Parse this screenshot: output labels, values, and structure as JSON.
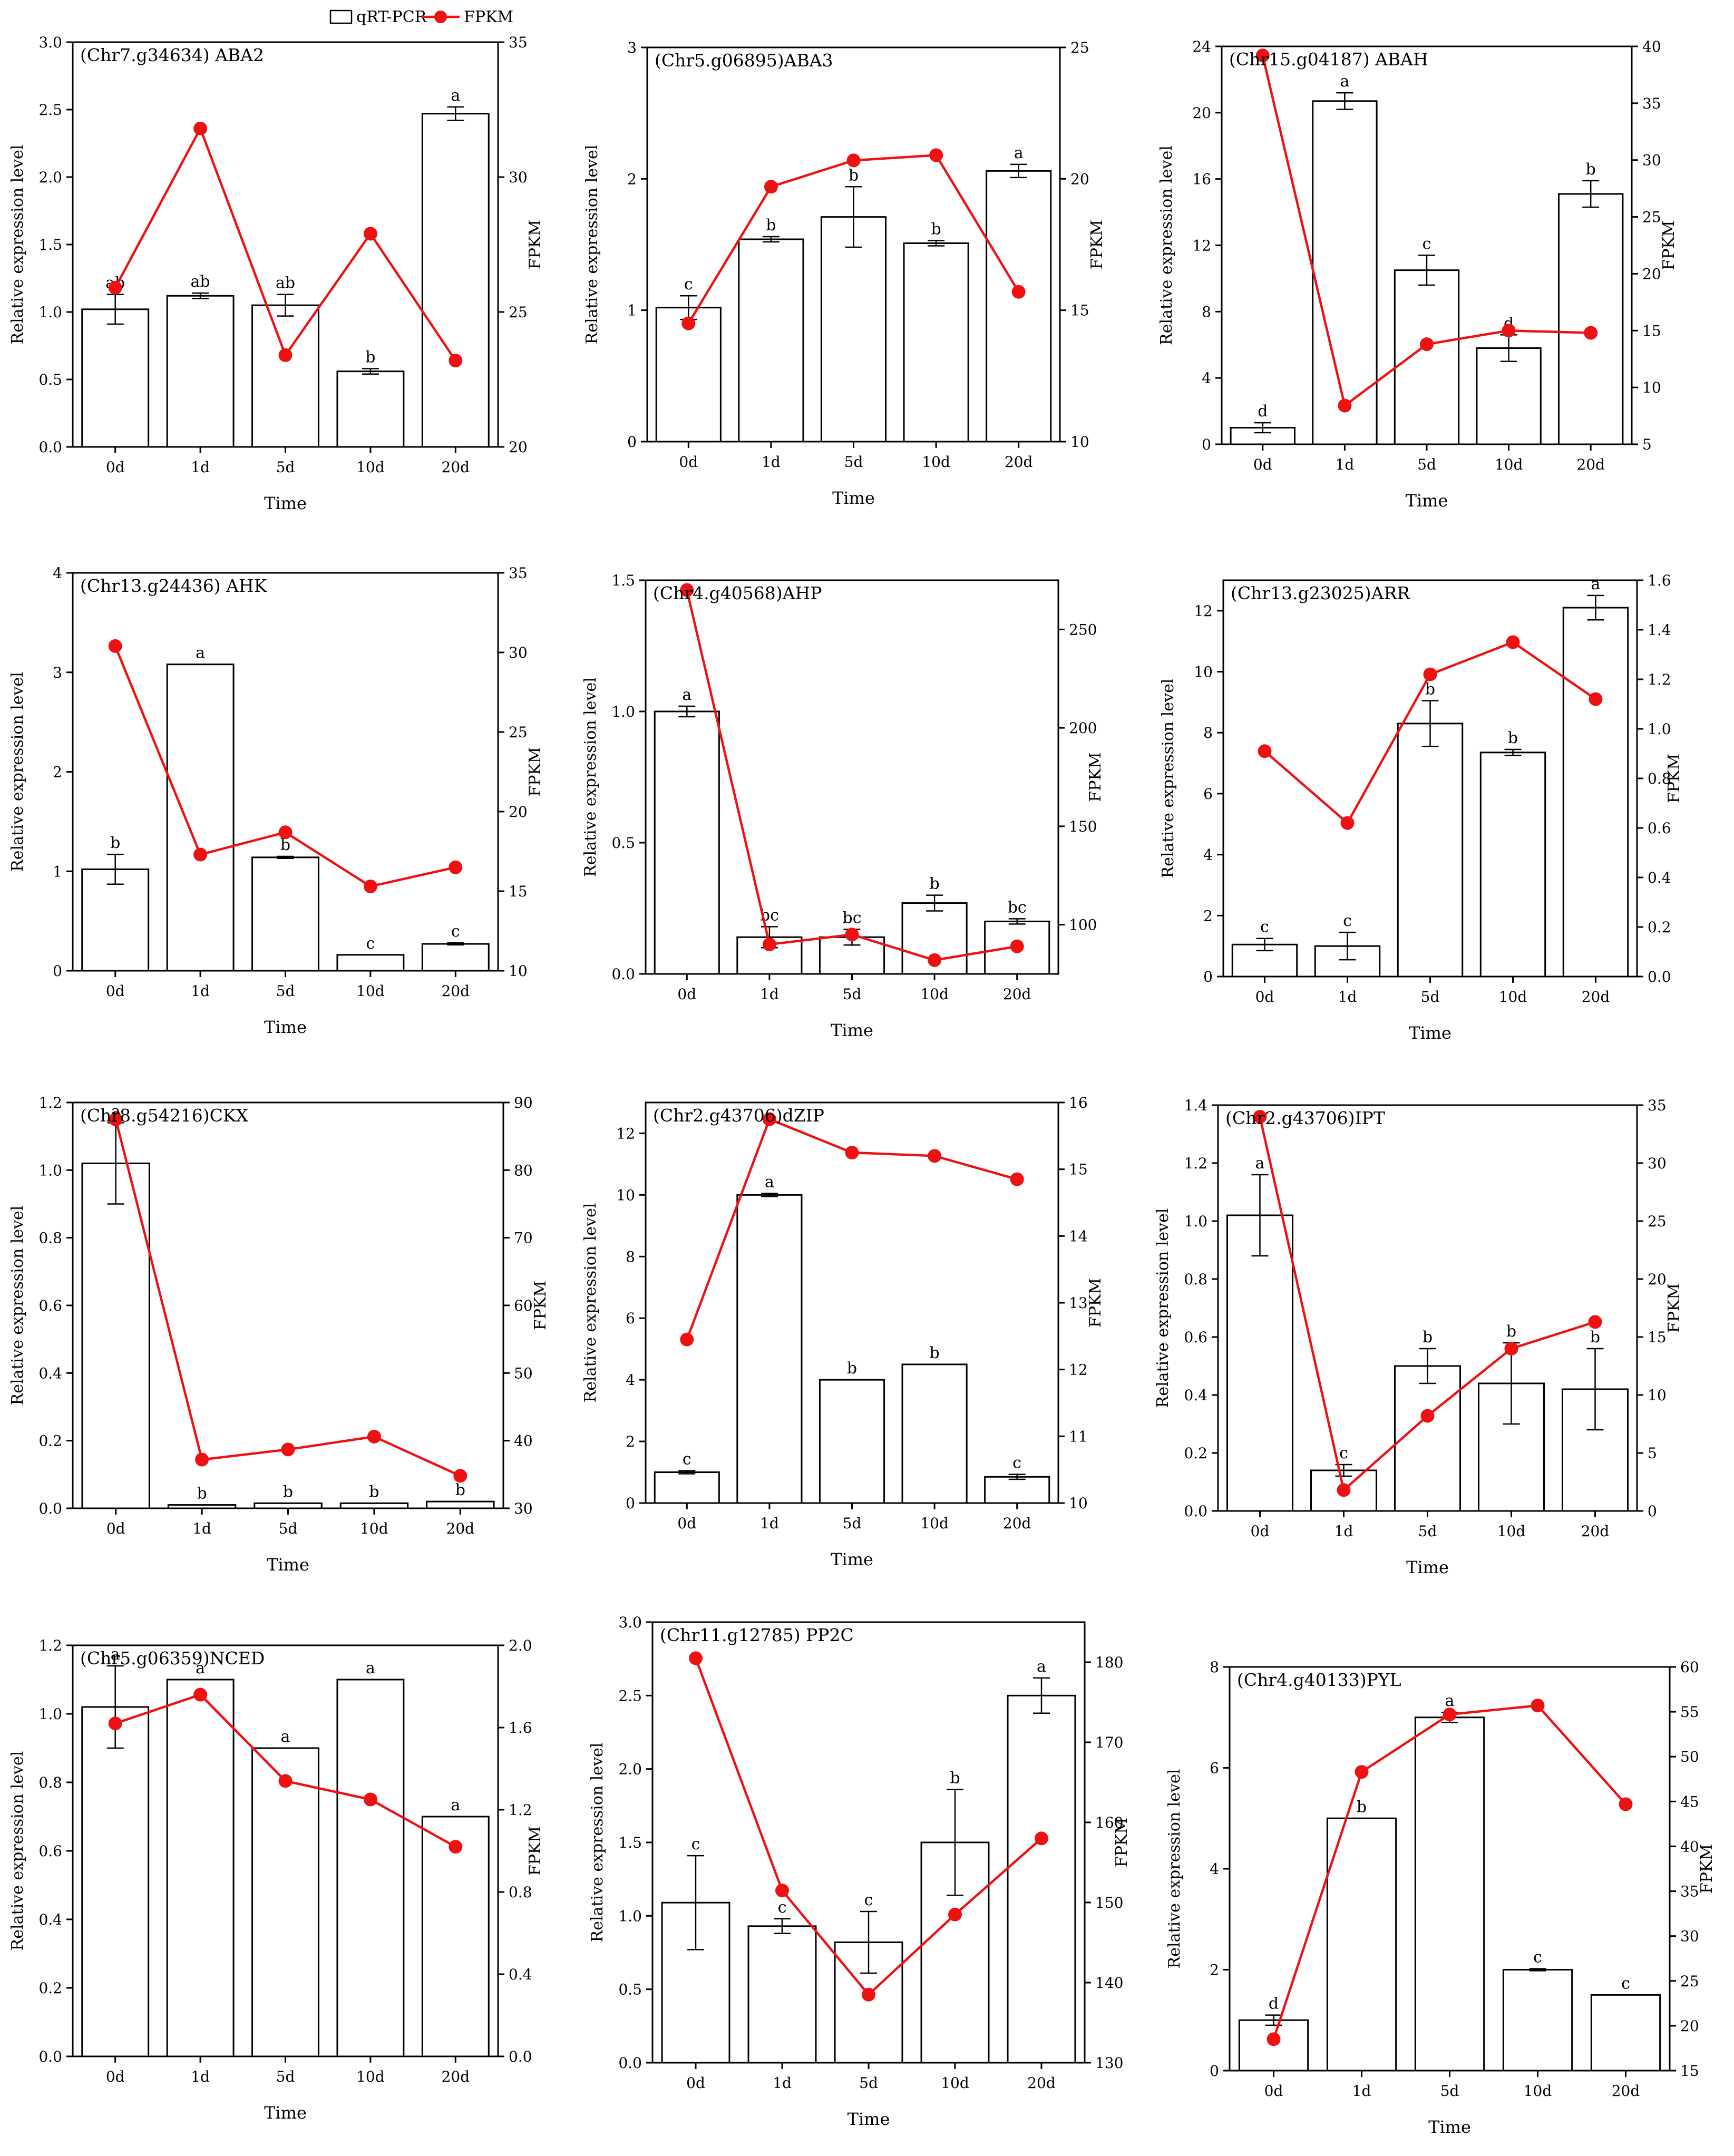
{
  "legend": {
    "qrt_label": "qRT-PCR",
    "fpkm_label": "FPKM"
  },
  "colors": {
    "fpkm": "#ee1111",
    "bar_stroke": "#000000",
    "bar_fill": "#ffffff"
  },
  "chart_data": [
    {
      "type": "bar+line",
      "title": "(Chr7.g34634) ABA2",
      "categories": [
        "0d",
        "1d",
        "5d",
        "10d",
        "20d"
      ],
      "xlabel": "Time",
      "ylabel": "Relative expression level",
      "y2label": "FPKM",
      "ylim": [
        0,
        3.0
      ],
      "yticks": [
        0,
        0.5,
        1.0,
        1.5,
        2.0,
        2.5,
        3.0
      ],
      "y2lim": [
        20,
        35
      ],
      "y2ticks": [
        20,
        25,
        30,
        35
      ],
      "values": [
        1.02,
        1.12,
        1.05,
        0.56,
        2.47
      ],
      "errors": [
        0.11,
        0.02,
        0.08,
        0.02,
        0.05
      ],
      "letters": [
        "ab",
        "ab",
        "ab",
        "b",
        "a"
      ],
      "fpkm": [
        25.9,
        31.8,
        23.4,
        27.9,
        23.2
      ],
      "legend": true
    },
    {
      "type": "bar+line",
      "title": "(Chr5.g06895)ABA3",
      "categories": [
        "0d",
        "1d",
        "5d",
        "10d",
        "20d"
      ],
      "xlabel": "Time",
      "ylabel": "Relative expression level",
      "y2label": "FPKM",
      "ylim": [
        0,
        3
      ],
      "yticks": [
        0,
        1,
        2,
        3
      ],
      "y2lim": [
        10,
        25
      ],
      "y2ticks": [
        10,
        15,
        20,
        25
      ],
      "values": [
        1.02,
        1.54,
        1.71,
        1.51,
        2.06
      ],
      "errors": [
        0.09,
        0.02,
        0.23,
        0.02,
        0.05
      ],
      "letters": [
        "c",
        "b",
        "b",
        "b",
        "a"
      ],
      "fpkm": [
        14.5,
        19.7,
        20.7,
        20.9,
        15.7
      ]
    },
    {
      "type": "bar+line",
      "title": "(Chr15.g04187) ABAH",
      "categories": [
        "0d",
        "1d",
        "5d",
        "10d",
        "20d"
      ],
      "xlabel": "Time",
      "ylabel": "Relative expression level",
      "y2label": "FPKM",
      "ylim": [
        0,
        24
      ],
      "yticks": [
        0,
        4,
        8,
        12,
        16,
        20,
        24
      ],
      "y2lim": [
        5,
        40
      ],
      "y2ticks": [
        5,
        10,
        15,
        20,
        25,
        30,
        35,
        40
      ],
      "values": [
        1.0,
        20.7,
        10.5,
        5.8,
        15.1
      ],
      "errors": [
        0.3,
        0.5,
        0.9,
        0.8,
        0.8
      ],
      "letters": [
        "d",
        "a",
        "c",
        "d",
        "b"
      ],
      "fpkm": [
        39.2,
        8.4,
        13.8,
        15.0,
        14.8
      ]
    },
    {
      "type": "bar+line",
      "title": "(Chr13.g24436) AHK",
      "categories": [
        "0d",
        "1d",
        "5d",
        "10d",
        "20d"
      ],
      "xlabel": "Time",
      "ylabel": "Relative expression level",
      "y2label": "FPKM",
      "ylim": [
        0,
        4
      ],
      "yticks": [
        0,
        1,
        2,
        3,
        4
      ],
      "y2lim": [
        10,
        35
      ],
      "y2ticks": [
        10,
        15,
        20,
        25,
        30,
        35
      ],
      "values": [
        1.02,
        3.08,
        1.14,
        0.16,
        0.27
      ],
      "errors": [
        0.15,
        0.0,
        0.01,
        0.0,
        0.01
      ],
      "letters": [
        "b",
        "a",
        "b",
        "c",
        "c"
      ],
      "fpkm": [
        30.4,
        17.3,
        18.7,
        15.3,
        16.5
      ]
    },
    {
      "type": "bar+line",
      "title": "(Chr4.g40568)AHP",
      "categories": [
        "0d",
        "1d",
        "5d",
        "10d",
        "20d"
      ],
      "xlabel": "Time",
      "ylabel": "Relative expression level",
      "y2label": "FPKM",
      "ylim": [
        0,
        1.5
      ],
      "yticks": [
        0.0,
        0.5,
        1.0,
        1.5
      ],
      "y2lim": [
        75,
        275
      ],
      "y2ticks": [
        100,
        150,
        200,
        250
      ],
      "values": [
        1.0,
        0.14,
        0.14,
        0.27,
        0.2
      ],
      "errors": [
        0.02,
        0.04,
        0.03,
        0.03,
        0.01
      ],
      "letters": [
        "a",
        "bc",
        "bc",
        "b",
        "bc"
      ],
      "fpkm": [
        270,
        90,
        95,
        82,
        89
      ]
    },
    {
      "type": "bar+line",
      "title": "(Chr13.g23025)ARR",
      "categories": [
        "0d",
        "1d",
        "5d",
        "10d",
        "20d"
      ],
      "xlabel": "Time",
      "ylabel": "Relative expression level",
      "y2label": "FPKM",
      "ylim": [
        0,
        13
      ],
      "yticks": [
        0,
        2,
        4,
        6,
        8,
        10,
        12
      ],
      "y2lim": [
        0,
        1.6
      ],
      "y2ticks": [
        0.0,
        0.2,
        0.4,
        0.6,
        0.8,
        1.0,
        1.2,
        1.4,
        1.6
      ],
      "values": [
        1.05,
        1.0,
        8.3,
        7.35,
        12.1
      ],
      "errors": [
        0.2,
        0.45,
        0.75,
        0.1,
        0.4
      ],
      "letters": [
        "c",
        "c",
        "b",
        "b",
        "a"
      ],
      "fpkm": [
        0.91,
        0.62,
        1.22,
        1.35,
        1.12
      ]
    },
    {
      "type": "bar+line",
      "title": "(Chr8.g54216)CKX",
      "categories": [
        "0d",
        "1d",
        "5d",
        "10d",
        "20d"
      ],
      "xlabel": "Time",
      "ylabel": "Relative expression level",
      "y2label": "FPKM",
      "ylim": [
        0,
        1.2
      ],
      "yticks": [
        0.0,
        0.2,
        0.4,
        0.6,
        0.8,
        1.0,
        1.2
      ],
      "y2lim": [
        30,
        90
      ],
      "y2ticks": [
        30,
        40,
        50,
        60,
        70,
        80,
        90
      ],
      "values": [
        1.02,
        0.01,
        0.015,
        0.015,
        0.02
      ],
      "errors": [
        0.12,
        0.0,
        0.0,
        0.0,
        0.0
      ],
      "letters": [
        "a",
        "b",
        "b",
        "b",
        "b"
      ],
      "fpkm": [
        87.5,
        37.2,
        38.7,
        40.6,
        34.8
      ]
    },
    {
      "type": "bar+line",
      "title": "(Chr2.g43706)dZIP",
      "categories": [
        "0d",
        "1d",
        "5d",
        "10d",
        "20d"
      ],
      "xlabel": "Time",
      "ylabel": "Relative expression level",
      "y2label": "FPKM",
      "ylim": [
        0,
        13
      ],
      "yticks": [
        0,
        2,
        4,
        6,
        8,
        10,
        12
      ],
      "y2lim": [
        10,
        16
      ],
      "y2ticks": [
        10,
        11,
        12,
        13,
        14,
        15,
        16
      ],
      "values": [
        1.0,
        10.0,
        4.0,
        4.5,
        0.85
      ],
      "errors": [
        0.05,
        0.05,
        0.0,
        0.0,
        0.08
      ],
      "letters": [
        "c",
        "a",
        "b",
        "b",
        "c"
      ],
      "fpkm": [
        12.45,
        15.75,
        15.25,
        15.2,
        14.85
      ]
    },
    {
      "type": "bar+line",
      "title": "(Chr2.g43706)IPT",
      "categories": [
        "0d",
        "1d",
        "5d",
        "10d",
        "20d"
      ],
      "xlabel": "Time",
      "ylabel": "Relative expression level",
      "y2label": "FPKM",
      "ylim": [
        0,
        1.4
      ],
      "yticks": [
        0.0,
        0.2,
        0.4,
        0.6,
        0.8,
        1.0,
        1.2,
        1.4
      ],
      "y2lim": [
        0,
        35
      ],
      "y2ticks": [
        0,
        5,
        10,
        15,
        20,
        25,
        30,
        35
      ],
      "values": [
        1.02,
        0.14,
        0.5,
        0.44,
        0.42
      ],
      "errors": [
        0.14,
        0.02,
        0.06,
        0.14,
        0.14
      ],
      "letters": [
        "a",
        "c",
        "b",
        "b",
        "b"
      ],
      "fpkm": [
        34,
        1.8,
        8.2,
        14,
        16.3
      ]
    },
    {
      "type": "bar+line",
      "title": "(Chr5.g06359)NCED",
      "categories": [
        "0d",
        "1d",
        "5d",
        "10d",
        "20d"
      ],
      "xlabel": "Time",
      "ylabel": "Relative expression level",
      "y2label": "FPKM",
      "ylim": [
        0,
        1.2
      ],
      "yticks": [
        0.0,
        0.2,
        0.4,
        0.6,
        0.8,
        1.0,
        1.2
      ],
      "y2lim": [
        0,
        2.0
      ],
      "y2ticks": [
        0.0,
        0.4,
        0.8,
        1.2,
        1.6,
        2.0
      ],
      "values": [
        1.02,
        1.1,
        0.9,
        1.1,
        0.7
      ],
      "errors": [
        0.12,
        0.0,
        0.0,
        0.0,
        0.0
      ],
      "letters": [
        "a",
        "a",
        "a",
        "a",
        "a"
      ],
      "fpkm": [
        1.62,
        1.76,
        1.34,
        1.25,
        1.02
      ]
    },
    {
      "type": "bar+line",
      "title": "(Chr11.g12785) PP2C",
      "categories": [
        "0d",
        "1d",
        "5d",
        "10d",
        "20d"
      ],
      "xlabel": "Time",
      "ylabel": "Relative expression level",
      "y2label": "FPKM",
      "ylim": [
        0,
        3.0
      ],
      "yticks": [
        0.0,
        0.5,
        1.0,
        1.5,
        2.0,
        2.5,
        3.0
      ],
      "y2lim": [
        130,
        185
      ],
      "y2ticks": [
        130,
        140,
        150,
        160,
        170,
        180
      ],
      "values": [
        1.09,
        0.93,
        0.82,
        1.5,
        2.5
      ],
      "errors": [
        0.32,
        0.05,
        0.21,
        0.36,
        0.12
      ],
      "letters": [
        "c",
        "c",
        "c",
        "b",
        "a"
      ],
      "fpkm": [
        180.5,
        151.5,
        138.5,
        148.5,
        158
      ]
    },
    {
      "type": "bar+line",
      "title": "(Chr4.g40133)PYL",
      "categories": [
        "0d",
        "1d",
        "5d",
        "10d",
        "20d"
      ],
      "xlabel": "Time",
      "ylabel": "Relative expression level",
      "y2label": "FPKM",
      "ylim": [
        0,
        8
      ],
      "yticks": [
        0,
        2,
        4,
        6,
        8
      ],
      "y2lim": [
        15,
        60
      ],
      "y2ticks": [
        15,
        20,
        25,
        30,
        35,
        40,
        45,
        50,
        55,
        60
      ],
      "values": [
        1.0,
        5.0,
        7.0,
        2.0,
        1.5
      ],
      "errors": [
        0.1,
        0.0,
        0.1,
        0.02,
        0.0
      ],
      "letters": [
        "d",
        "b",
        "a",
        "c",
        "c"
      ],
      "fpkm": [
        18.5,
        48.3,
        54.7,
        55.7,
        44.7
      ]
    }
  ]
}
